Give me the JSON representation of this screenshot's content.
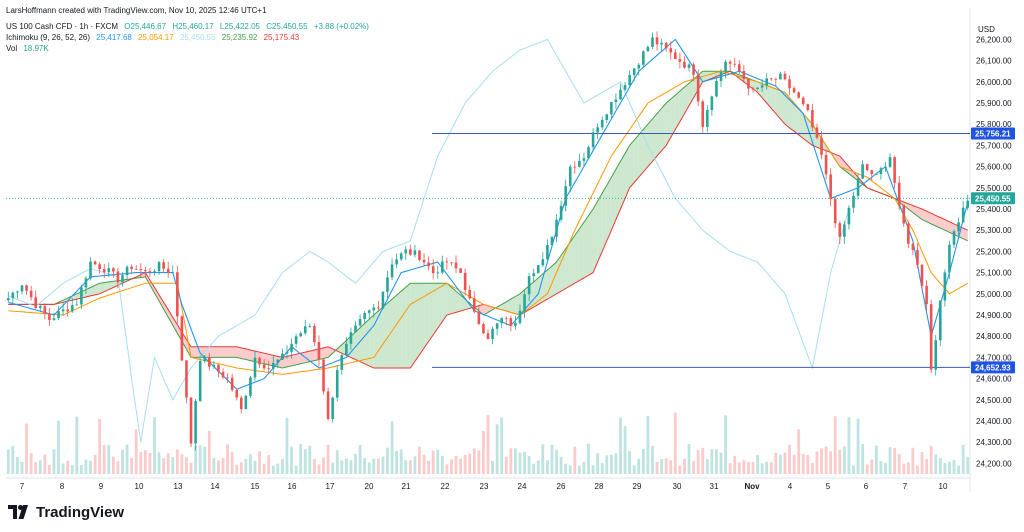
{
  "header": {
    "attribution": "LarsHoffmann created with TradingView.com, Nov 10, 2025 12:46 UTC+1",
    "symbol": "US 100 Cash CFD · 1h · FXCM",
    "ohlc": {
      "o": "O25,446.67",
      "h": "H25,460.17",
      "l": "L25,422.05",
      "c": "C25,450.55",
      "chg": "+3.88 (+0.02%)"
    },
    "ichimoku_label": "Ichimoku (9, 26, 52, 26)",
    "ichimoku_values": [
      "25,417.68",
      "25,054.17",
      "25,450.55",
      "25,235.92",
      "25,175.43"
    ],
    "vol_label": "Vol",
    "vol_value": "18.97K"
  },
  "brand": "TradingView",
  "colors": {
    "up": "#26a69a",
    "down": "#ef5350",
    "tenkan": "#2196f3",
    "kijun": "#ff9800",
    "chikou": "#a6dff0",
    "spanA": "#43a047",
    "spanB": "#e53935",
    "cloudUp": "#a5d6a7",
    "cloudDown": "#f5a3a3",
    "hline": "#3c5ab4",
    "lastPrice": "#26a69a"
  },
  "chart_data": {
    "type": "candlestick",
    "currency": "USD",
    "y_range": [
      24150,
      26320
    ],
    "y_ticks": [
      24200,
      24300,
      24400,
      24500,
      24600,
      24700,
      24800,
      24900,
      25000,
      25100,
      25200,
      25300,
      25400,
      25500,
      25600,
      25700,
      25800,
      25900,
      26000,
      26100,
      26200
    ],
    "y_tick_labels": [
      "24,200.00",
      "24,300.00",
      "24,400.00",
      "24,500.00",
      "24,600.00",
      "24,700.00",
      "24,800.00",
      "24,900.00",
      "25,000.00",
      "25,100.00",
      "25,200.00",
      "25,300.00",
      "25,400.00",
      "25,500.00",
      "25,600.00",
      "25,700.00",
      "25,800.00",
      "25,900.00",
      "26,000.00",
      "26,100.00",
      "26,200.00"
    ],
    "x_labels": [
      "7",
      "8",
      "9",
      "10",
      "13",
      "14",
      "15",
      "16",
      "17",
      "20",
      "21",
      "22",
      "23",
      "24",
      "26",
      "28",
      "29",
      "30",
      "31",
      "Nov",
      "4",
      "5",
      "6",
      "7",
      "10"
    ],
    "close_path": [
      [
        0,
        24980
      ],
      [
        3,
        25050
      ],
      [
        6,
        24950
      ],
      [
        9,
        24880
      ],
      [
        12,
        24920
      ],
      [
        15,
        24960
      ],
      [
        18,
        25150
      ],
      [
        21,
        25120
      ],
      [
        24,
        25070
      ],
      [
        27,
        25130
      ],
      [
        30,
        25100
      ],
      [
        33,
        25130
      ],
      [
        36,
        25100
      ],
      [
        38,
        24700
      ],
      [
        40,
        24300
      ],
      [
        42,
        24700
      ],
      [
        45,
        24650
      ],
      [
        48,
        24600
      ],
      [
        51,
        24450
      ],
      [
        54,
        24700
      ],
      [
        57,
        24650
      ],
      [
        60,
        24700
      ],
      [
        63,
        24800
      ],
      [
        66,
        24850
      ],
      [
        68,
        24700
      ],
      [
        70,
        24400
      ],
      [
        72,
        24650
      ],
      [
        75,
        24800
      ],
      [
        78,
        24900
      ],
      [
        81,
        24950
      ],
      [
        84,
        25150
      ],
      [
        87,
        25200
      ],
      [
        90,
        25180
      ],
      [
        93,
        25100
      ],
      [
        96,
        25150
      ],
      [
        99,
        25100
      ],
      [
        102,
        24900
      ],
      [
        105,
        24800
      ],
      [
        108,
        24880
      ],
      [
        111,
        24850
      ],
      [
        114,
        25100
      ],
      [
        117,
        25150
      ],
      [
        120,
        25350
      ],
      [
        123,
        25600
      ],
      [
        126,
        25650
      ],
      [
        129,
        25800
      ],
      [
        132,
        25900
      ],
      [
        135,
        26000
      ],
      [
        138,
        26100
      ],
      [
        141,
        26200
      ],
      [
        144,
        26150
      ],
      [
        147,
        26100
      ],
      [
        150,
        26050
      ],
      [
        152,
        25800
      ],
      [
        154,
        25950
      ],
      [
        157,
        26100
      ],
      [
        160,
        26050
      ],
      [
        163,
        25950
      ],
      [
        166,
        26000
      ],
      [
        169,
        26020
      ],
      [
        172,
        25950
      ],
      [
        175,
        25850
      ],
      [
        178,
        25650
      ],
      [
        180,
        25450
      ],
      [
        182,
        25250
      ],
      [
        184,
        25400
      ],
      [
        187,
        25600
      ],
      [
        190,
        25550
      ],
      [
        193,
        25650
      ],
      [
        195,
        25400
      ],
      [
        197,
        25250
      ],
      [
        199,
        25150
      ],
      [
        201,
        24950
      ],
      [
        202,
        24650
      ],
      [
        204,
        24950
      ],
      [
        206,
        25250
      ],
      [
        208,
        25350
      ],
      [
        210,
        25450
      ]
    ],
    "tenkan_path": [
      [
        0,
        24960
      ],
      [
        10,
        24900
      ],
      [
        18,
        25080
      ],
      [
        28,
        25100
      ],
      [
        36,
        25100
      ],
      [
        38,
        24950
      ],
      [
        42,
        24720
      ],
      [
        50,
        24550
      ],
      [
        56,
        24600
      ],
      [
        62,
        24750
      ],
      [
        68,
        24650
      ],
      [
        74,
        24700
      ],
      [
        80,
        24850
      ],
      [
        86,
        25100
      ],
      [
        94,
        25150
      ],
      [
        102,
        24920
      ],
      [
        110,
        24850
      ],
      [
        116,
        25000
      ],
      [
        122,
        25450
      ],
      [
        130,
        25750
      ],
      [
        138,
        26050
      ],
      [
        146,
        26200
      ],
      [
        152,
        26000
      ],
      [
        160,
        26050
      ],
      [
        168,
        25980
      ],
      [
        174,
        25850
      ],
      [
        180,
        25450
      ],
      [
        186,
        25500
      ],
      [
        192,
        25600
      ],
      [
        198,
        25250
      ],
      [
        202,
        24800
      ],
      [
        206,
        25100
      ],
      [
        210,
        25430
      ]
    ],
    "kijun_path": [
      [
        0,
        24920
      ],
      [
        12,
        24900
      ],
      [
        20,
        24980
      ],
      [
        30,
        25050
      ],
      [
        37,
        25050
      ],
      [
        40,
        24700
      ],
      [
        50,
        24650
      ],
      [
        60,
        24620
      ],
      [
        70,
        24650
      ],
      [
        80,
        24700
      ],
      [
        88,
        24950
      ],
      [
        96,
        25050
      ],
      [
        104,
        24950
      ],
      [
        112,
        24900
      ],
      [
        118,
        25000
      ],
      [
        124,
        25300
      ],
      [
        132,
        25650
      ],
      [
        140,
        25900
      ],
      [
        148,
        26000
      ],
      [
        156,
        26050
      ],
      [
        164,
        26000
      ],
      [
        170,
        25950
      ],
      [
        176,
        25800
      ],
      [
        182,
        25600
      ],
      [
        188,
        25550
      ],
      [
        194,
        25450
      ],
      [
        198,
        25300
      ],
      [
        202,
        25100
      ],
      [
        206,
        25000
      ],
      [
        210,
        25050
      ]
    ],
    "chikou_path": [
      [
        0,
        24990
      ],
      [
        6,
        24940
      ],
      [
        12,
        25050
      ],
      [
        18,
        25120
      ],
      [
        24,
        25080
      ],
      [
        27,
        24600
      ],
      [
        29,
        24300
      ],
      [
        32,
        24700
      ],
      [
        36,
        24500
      ],
      [
        40,
        24650
      ],
      [
        46,
        24800
      ],
      [
        54,
        24900
      ],
      [
        60,
        25100
      ],
      [
        66,
        25200
      ],
      [
        70,
        25150
      ],
      [
        76,
        25050
      ],
      [
        82,
        25200
      ],
      [
        88,
        25250
      ],
      [
        94,
        25650
      ],
      [
        100,
        25900
      ],
      [
        106,
        26050
      ],
      [
        112,
        26150
      ],
      [
        118,
        26200
      ],
      [
        122,
        26050
      ],
      [
        126,
        25900
      ],
      [
        130,
        25950
      ],
      [
        134,
        26000
      ],
      [
        140,
        25700
      ],
      [
        146,
        25450
      ],
      [
        152,
        25300
      ],
      [
        158,
        25200
      ],
      [
        164,
        25150
      ],
      [
        170,
        25000
      ],
      [
        176,
        24650
      ],
      [
        180,
        25100
      ],
      [
        184,
        25400
      ]
    ],
    "spanA_path": [
      [
        0,
        24950
      ],
      [
        10,
        24950
      ],
      [
        20,
        25050
      ],
      [
        30,
        25080
      ],
      [
        40,
        24700
      ],
      [
        50,
        24700
      ],
      [
        60,
        24650
      ],
      [
        70,
        24700
      ],
      [
        80,
        24900
      ],
      [
        88,
        25050
      ],
      [
        96,
        25050
      ],
      [
        104,
        24900
      ],
      [
        112,
        25000
      ],
      [
        120,
        25150
      ],
      [
        128,
        25400
      ],
      [
        136,
        25700
      ],
      [
        144,
        25900
      ],
      [
        152,
        26050
      ],
      [
        158,
        26050
      ],
      [
        164,
        26000
      ],
      [
        170,
        25950
      ],
      [
        176,
        25800
      ],
      [
        182,
        25600
      ],
      [
        188,
        25500
      ],
      [
        194,
        25450
      ],
      [
        200,
        25350
      ],
      [
        210,
        25250
      ]
    ],
    "spanB_path": [
      [
        0,
        24950
      ],
      [
        10,
        24950
      ],
      [
        20,
        25000
      ],
      [
        30,
        25100
      ],
      [
        40,
        24750
      ],
      [
        50,
        24750
      ],
      [
        60,
        24700
      ],
      [
        70,
        24750
      ],
      [
        80,
        24650
      ],
      [
        88,
        24650
      ],
      [
        96,
        24900
      ],
      [
        104,
        24950
      ],
      [
        112,
        24900
      ],
      [
        120,
        25000
      ],
      [
        128,
        25100
      ],
      [
        136,
        25500
      ],
      [
        144,
        25700
      ],
      [
        152,
        26000
      ],
      [
        158,
        26050
      ],
      [
        164,
        25950
      ],
      [
        170,
        25800
      ],
      [
        176,
        25700
      ],
      [
        182,
        25650
      ],
      [
        188,
        25500
      ],
      [
        194,
        25450
      ],
      [
        200,
        25400
      ],
      [
        210,
        25300
      ]
    ],
    "horizontal_lines": [
      25756.21,
      24652.93
    ],
    "price_labels": [
      {
        "value": 25756.21,
        "label": "25,756.21",
        "color": "#1e53e5"
      },
      {
        "value": 25450.55,
        "label": "25,450.55",
        "color": "#26a69a"
      },
      {
        "value": 24652.93,
        "label": "24,652.93",
        "color": "#1e53e5"
      }
    ],
    "volume_max": 1
  }
}
